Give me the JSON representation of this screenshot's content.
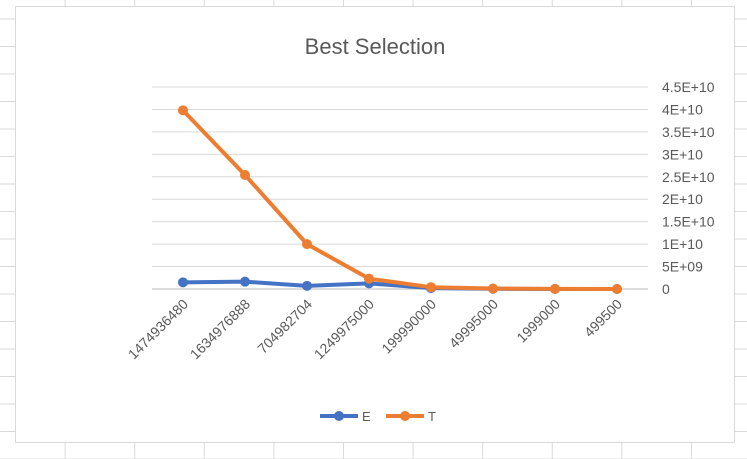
{
  "chart_data": {
    "type": "line",
    "title": "Best Selection",
    "categories": [
      "1474936480",
      "1634976888",
      "704982704",
      "1249975000",
      "199990000",
      "49995000",
      "1999000",
      "499500"
    ],
    "series": [
      {
        "name": "E",
        "color": "#4472c4",
        "values": [
          1474936480,
          1634976888,
          704982704,
          1249975000,
          199990000,
          49995000,
          1999000,
          499500
        ]
      },
      {
        "name": "T",
        "color": "#ed7d31",
        "values": [
          39800000000,
          25400000000,
          10000000000,
          2300000000,
          400000000,
          100000000,
          20000000,
          5000000
        ]
      }
    ],
    "ylim": [
      0,
      45000000000
    ],
    "y_ticks": [
      "0",
      "5E+09",
      "1E+10",
      "1.5E+10",
      "2E+10",
      "2.5E+10",
      "3E+10",
      "3.5E+10",
      "4E+10",
      "4.5E+10"
    ],
    "y_axis_position": "right",
    "grid": true,
    "legend": "bottom"
  }
}
